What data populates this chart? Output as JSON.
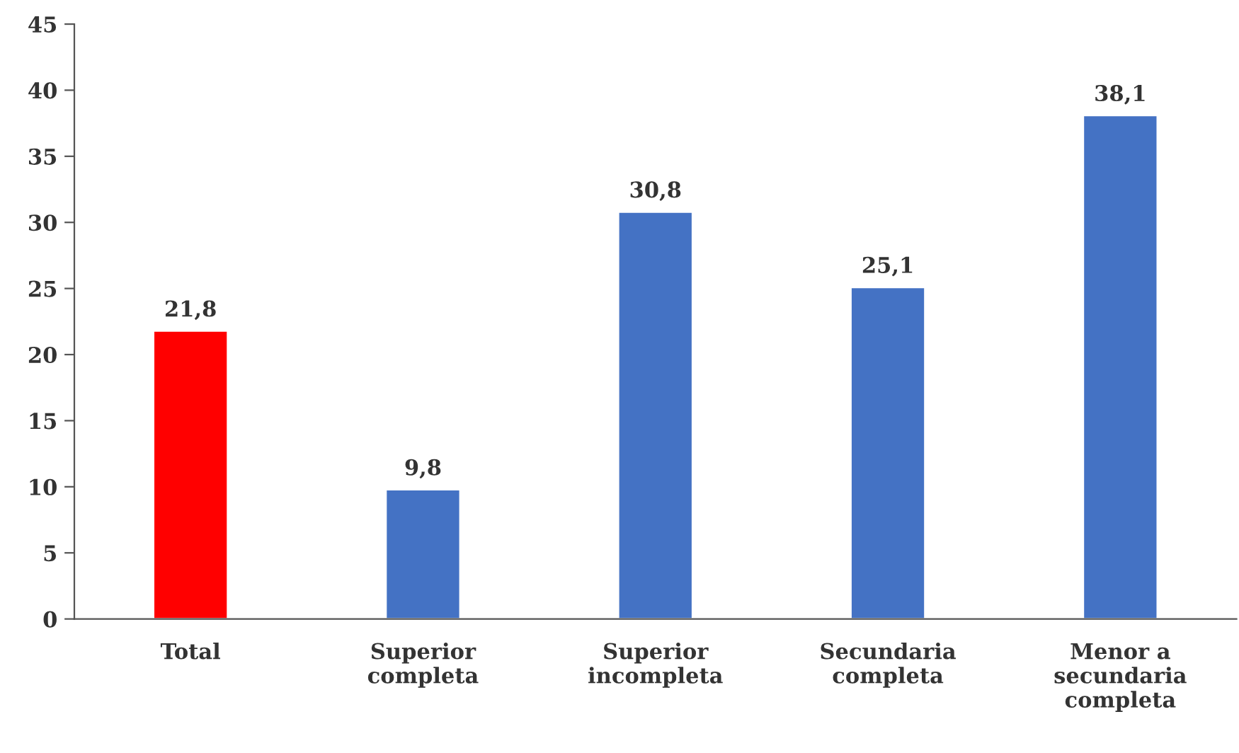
{
  "chart_data": {
    "type": "bar",
    "categories": [
      "Total",
      "Superior\ncompleta",
      "Superior\nincompleta",
      "Secundaria\ncompleta",
      "Menor a\nsecundaria\ncompleta"
    ],
    "values": [
      21.8,
      9.8,
      30.8,
      25.1,
      38.1
    ],
    "colors": [
      "#ff0000",
      "#4472c4",
      "#4472c4",
      "#4472c4",
      "#4472c4"
    ],
    "value_labels": [
      "21,8",
      "9,8",
      "30,8",
      "25,1",
      "38,1"
    ],
    "ylim": [
      0,
      45
    ],
    "yticks": [
      0,
      5,
      10,
      15,
      20,
      25,
      30,
      35,
      40,
      45
    ],
    "grid": false,
    "legend": false
  }
}
